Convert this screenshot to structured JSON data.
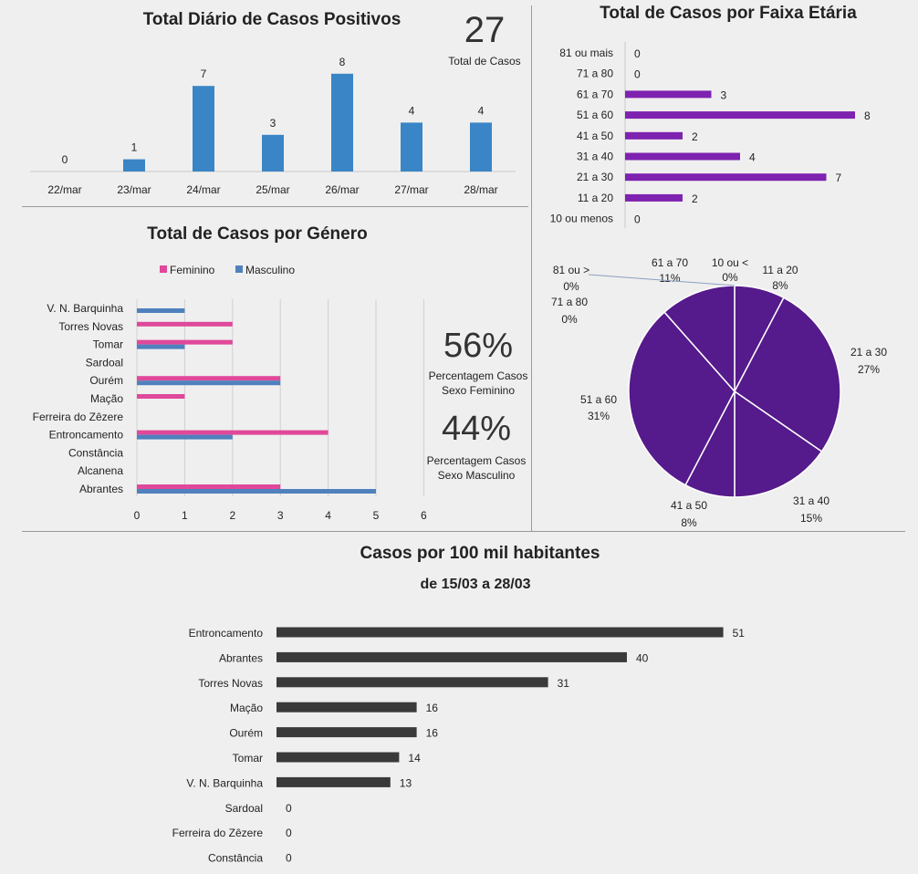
{
  "daily": {
    "title": "Total Diário de Casos Positivos",
    "total_value": "27",
    "total_label": "Total de Casos"
  },
  "age": {
    "title": "Total de Casos por Faixa Etária"
  },
  "gender": {
    "title": "Total de Casos por Género",
    "pct_female": "56%",
    "pct_female_label_1": "Percentagem Casos",
    "pct_female_label_2": "Sexo Feminino",
    "pct_male": "44%",
    "pct_male_label_1": "Percentagem Casos",
    "pct_male_label_2": "Sexo Masculino"
  },
  "per100k": {
    "title": "Casos por 100 mil habitantes",
    "subtitle": "de 15/03 a 28/03"
  },
  "colors": {
    "daily_bar": "#3a85c6",
    "age_bar": "#7e22b0",
    "pie_fill": "#551a8b",
    "female": "#e0489a",
    "male": "#4f81bd",
    "per100k_bar": "#3a3a3a"
  },
  "chart_data": [
    {
      "id": "daily",
      "type": "bar",
      "title": "Total Diário de Casos Positivos",
      "categories": [
        "22/mar",
        "23/mar",
        "24/mar",
        "25/mar",
        "26/mar",
        "27/mar",
        "28/mar"
      ],
      "values": [
        0,
        1,
        7,
        3,
        8,
        4,
        4
      ]
    },
    {
      "id": "age",
      "type": "bar",
      "orientation": "horizontal",
      "title": "Total de Casos por Faixa Etária",
      "categories": [
        "81 ou mais",
        "71 a 80",
        "61 a 70",
        "51 a 60",
        "41 a 50",
        "31 a 40",
        "21 a 30",
        "11 a 20",
        "10 ou menos"
      ],
      "values": [
        0,
        0,
        3,
        8,
        2,
        4,
        7,
        2,
        0
      ]
    },
    {
      "id": "age_pie",
      "type": "pie",
      "slices": [
        {
          "label": "10 ou <",
          "pct": "0%",
          "value": 0
        },
        {
          "label": "11 a 20",
          "pct": "8%",
          "value": 2
        },
        {
          "label": "21 a 30",
          "pct": "27%",
          "value": 7
        },
        {
          "label": "31 a 40",
          "pct": "15%",
          "value": 4
        },
        {
          "label": "41 a 50",
          "pct": "8%",
          "value": 2
        },
        {
          "label": "51 a 60",
          "pct": "31%",
          "value": 8
        },
        {
          "label": "61 a 70",
          "pct": "11%",
          "value": 3
        },
        {
          "label": "71 a 80",
          "pct": "0%",
          "value": 0
        },
        {
          "label": "81 ou >",
          "pct": "0%",
          "value": 0
        }
      ]
    },
    {
      "id": "gender",
      "type": "bar",
      "orientation": "horizontal",
      "title": "Total de Casos por Género",
      "categories": [
        "V. N. Barquinha",
        "Torres Novas",
        "Tomar",
        "Sardoal",
        "Ourém",
        "Mação",
        "Ferreira do Zêzere",
        "Entroncamento",
        "Constância",
        "Alcanena",
        "Abrantes"
      ],
      "series": [
        {
          "name": "Feminino",
          "values": [
            0,
            2,
            2,
            0,
            3,
            1,
            0,
            4,
            0,
            0,
            3
          ]
        },
        {
          "name": "Masculino",
          "values": [
            1,
            0,
            1,
            0,
            3,
            0,
            0,
            2,
            0,
            0,
            5
          ]
        }
      ],
      "xlim": [
        0,
        6
      ],
      "xticks": [
        "0",
        "1",
        "2",
        "3",
        "4",
        "5",
        "6"
      ],
      "grid": true,
      "legend": "top"
    },
    {
      "id": "per100k",
      "type": "bar",
      "orientation": "horizontal",
      "title": "Casos por 100 mil habitantes",
      "subtitle": "de 15/03 a 28/03",
      "categories": [
        "Entroncamento",
        "Abrantes",
        "Torres Novas",
        "Mação",
        "Ourém",
        "Tomar",
        "V. N. Barquinha",
        "Sardoal",
        "Ferreira do Zêzere",
        "Constância"
      ],
      "values": [
        51,
        40,
        31,
        16,
        16,
        14,
        13,
        0,
        0,
        0
      ]
    }
  ]
}
